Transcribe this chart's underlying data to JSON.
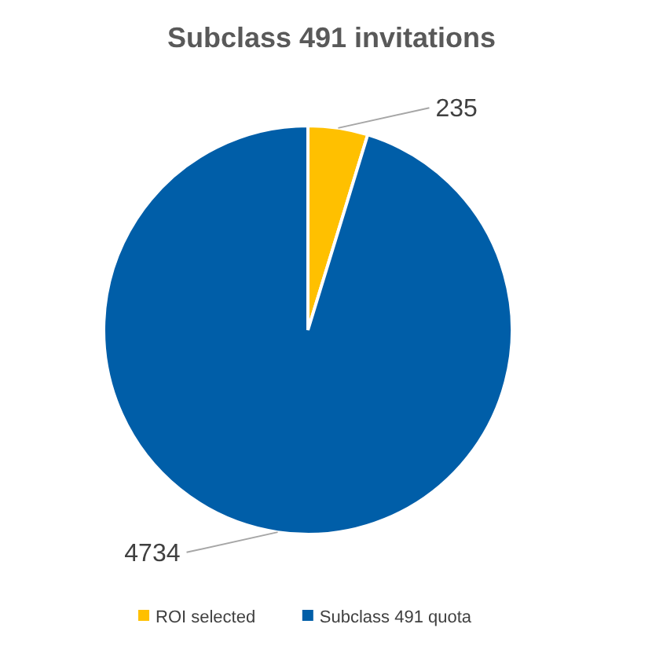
{
  "chart_data": {
    "type": "pie",
    "title": "Subclass 491 invitations",
    "categories": [
      "ROI selected",
      "Subclass 491 quota"
    ],
    "values": [
      235,
      4734
    ],
    "colors": [
      "#ffc000",
      "#005ea8"
    ],
    "data_labels": true,
    "legend": "bottom"
  }
}
